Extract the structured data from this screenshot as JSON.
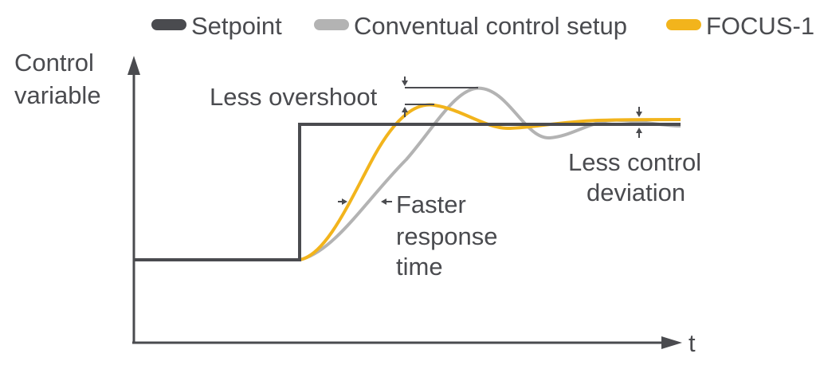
{
  "legend": [
    {
      "label": "Setpoint",
      "color": "#4a4b4f"
    },
    {
      "label": "Conventual control setup",
      "color": "#b3b3b3"
    },
    {
      "label": "FOCUS-1",
      "color": "#f2b41c"
    }
  ],
  "axes": {
    "y_label_line1": "Control",
    "y_label_line2": "variable",
    "x_label": "t"
  },
  "annotations": {
    "overshoot": "Less overshoot",
    "response_line1": "Faster",
    "response_line2": "response",
    "response_line3": "time",
    "deviation_line1": "Less control",
    "deviation_line2": "deviation"
  },
  "colors": {
    "axis": "#4a4b4f",
    "setpoint": "#4a4b4f",
    "conventional": "#b3b3b3",
    "focus": "#f2b41c",
    "annotation_marker": "#4a4b4f"
  }
}
